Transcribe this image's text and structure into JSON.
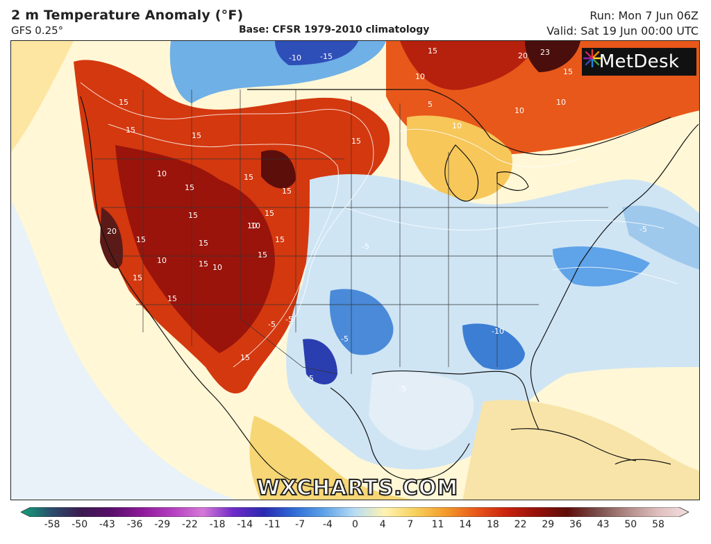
{
  "header": {
    "title": "2 m Temperature Anomaly (°F)",
    "model": "GFS 0.25°",
    "base": "Base: CFSR 1979-2010 climatology",
    "run": "Run: Mon 7 Jun 06Z",
    "valid": "Valid: Sat 19 Jun 00:00 UTC"
  },
  "logo": {
    "text": "MetDesk",
    "icon": "starburst-icon"
  },
  "watermark": "WXCHARTS.COM",
  "contour_labels": [
    "-10",
    "-15",
    "15",
    "20",
    "23",
    "15",
    "15",
    "15",
    "10",
    "10",
    "10",
    "10",
    "15",
    "15",
    "15",
    "10",
    "15",
    "15",
    "10",
    "15",
    "15",
    "10",
    "15",
    "20",
    "15",
    "10",
    "15",
    "15",
    "15",
    "15",
    "15",
    "10",
    "15",
    "-5",
    "-5",
    "-5",
    "-5",
    "-10",
    "-5",
    "-5",
    "-5",
    "-5",
    "5",
    "10"
  ],
  "legend": {
    "ticks": [
      "-58",
      "-50",
      "-43",
      "-36",
      "-29",
      "-22",
      "-18",
      "-14",
      "-11",
      "-7",
      "-4",
      "0",
      "4",
      "7",
      "11",
      "14",
      "18",
      "22",
      "29",
      "36",
      "43",
      "50",
      "58"
    ],
    "colors": [
      "#11a37a",
      "#2a4d6c",
      "#3b1a50",
      "#5a0d6b",
      "#8e1a9a",
      "#b43fc0",
      "#d678d8",
      "#6e2ac8",
      "#2a2ab0",
      "#2f6bd6",
      "#5fa3e8",
      "#b9dcf5",
      "#fff3b0",
      "#f7d05c",
      "#f39a2c",
      "#e8581a",
      "#c9230e",
      "#951109",
      "#5e0d0a",
      "#7a4e4a",
      "#b28b88",
      "#dfc0bf",
      "#f4dede"
    ]
  }
}
